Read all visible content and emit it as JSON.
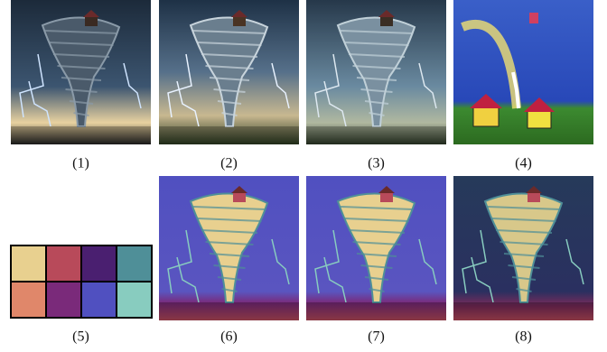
{
  "captions": [
    "(1)",
    "(2)",
    "(3)",
    "(4)",
    "(5)",
    "(6)",
    "(7)",
    "(8)"
  ],
  "palette": [
    "#e8d08f",
    "#b84a5a",
    "#4a1f70",
    "#4f8f98",
    "#e0876a",
    "#7a2a7a",
    "#5050c0",
    "#88ccbf"
  ]
}
